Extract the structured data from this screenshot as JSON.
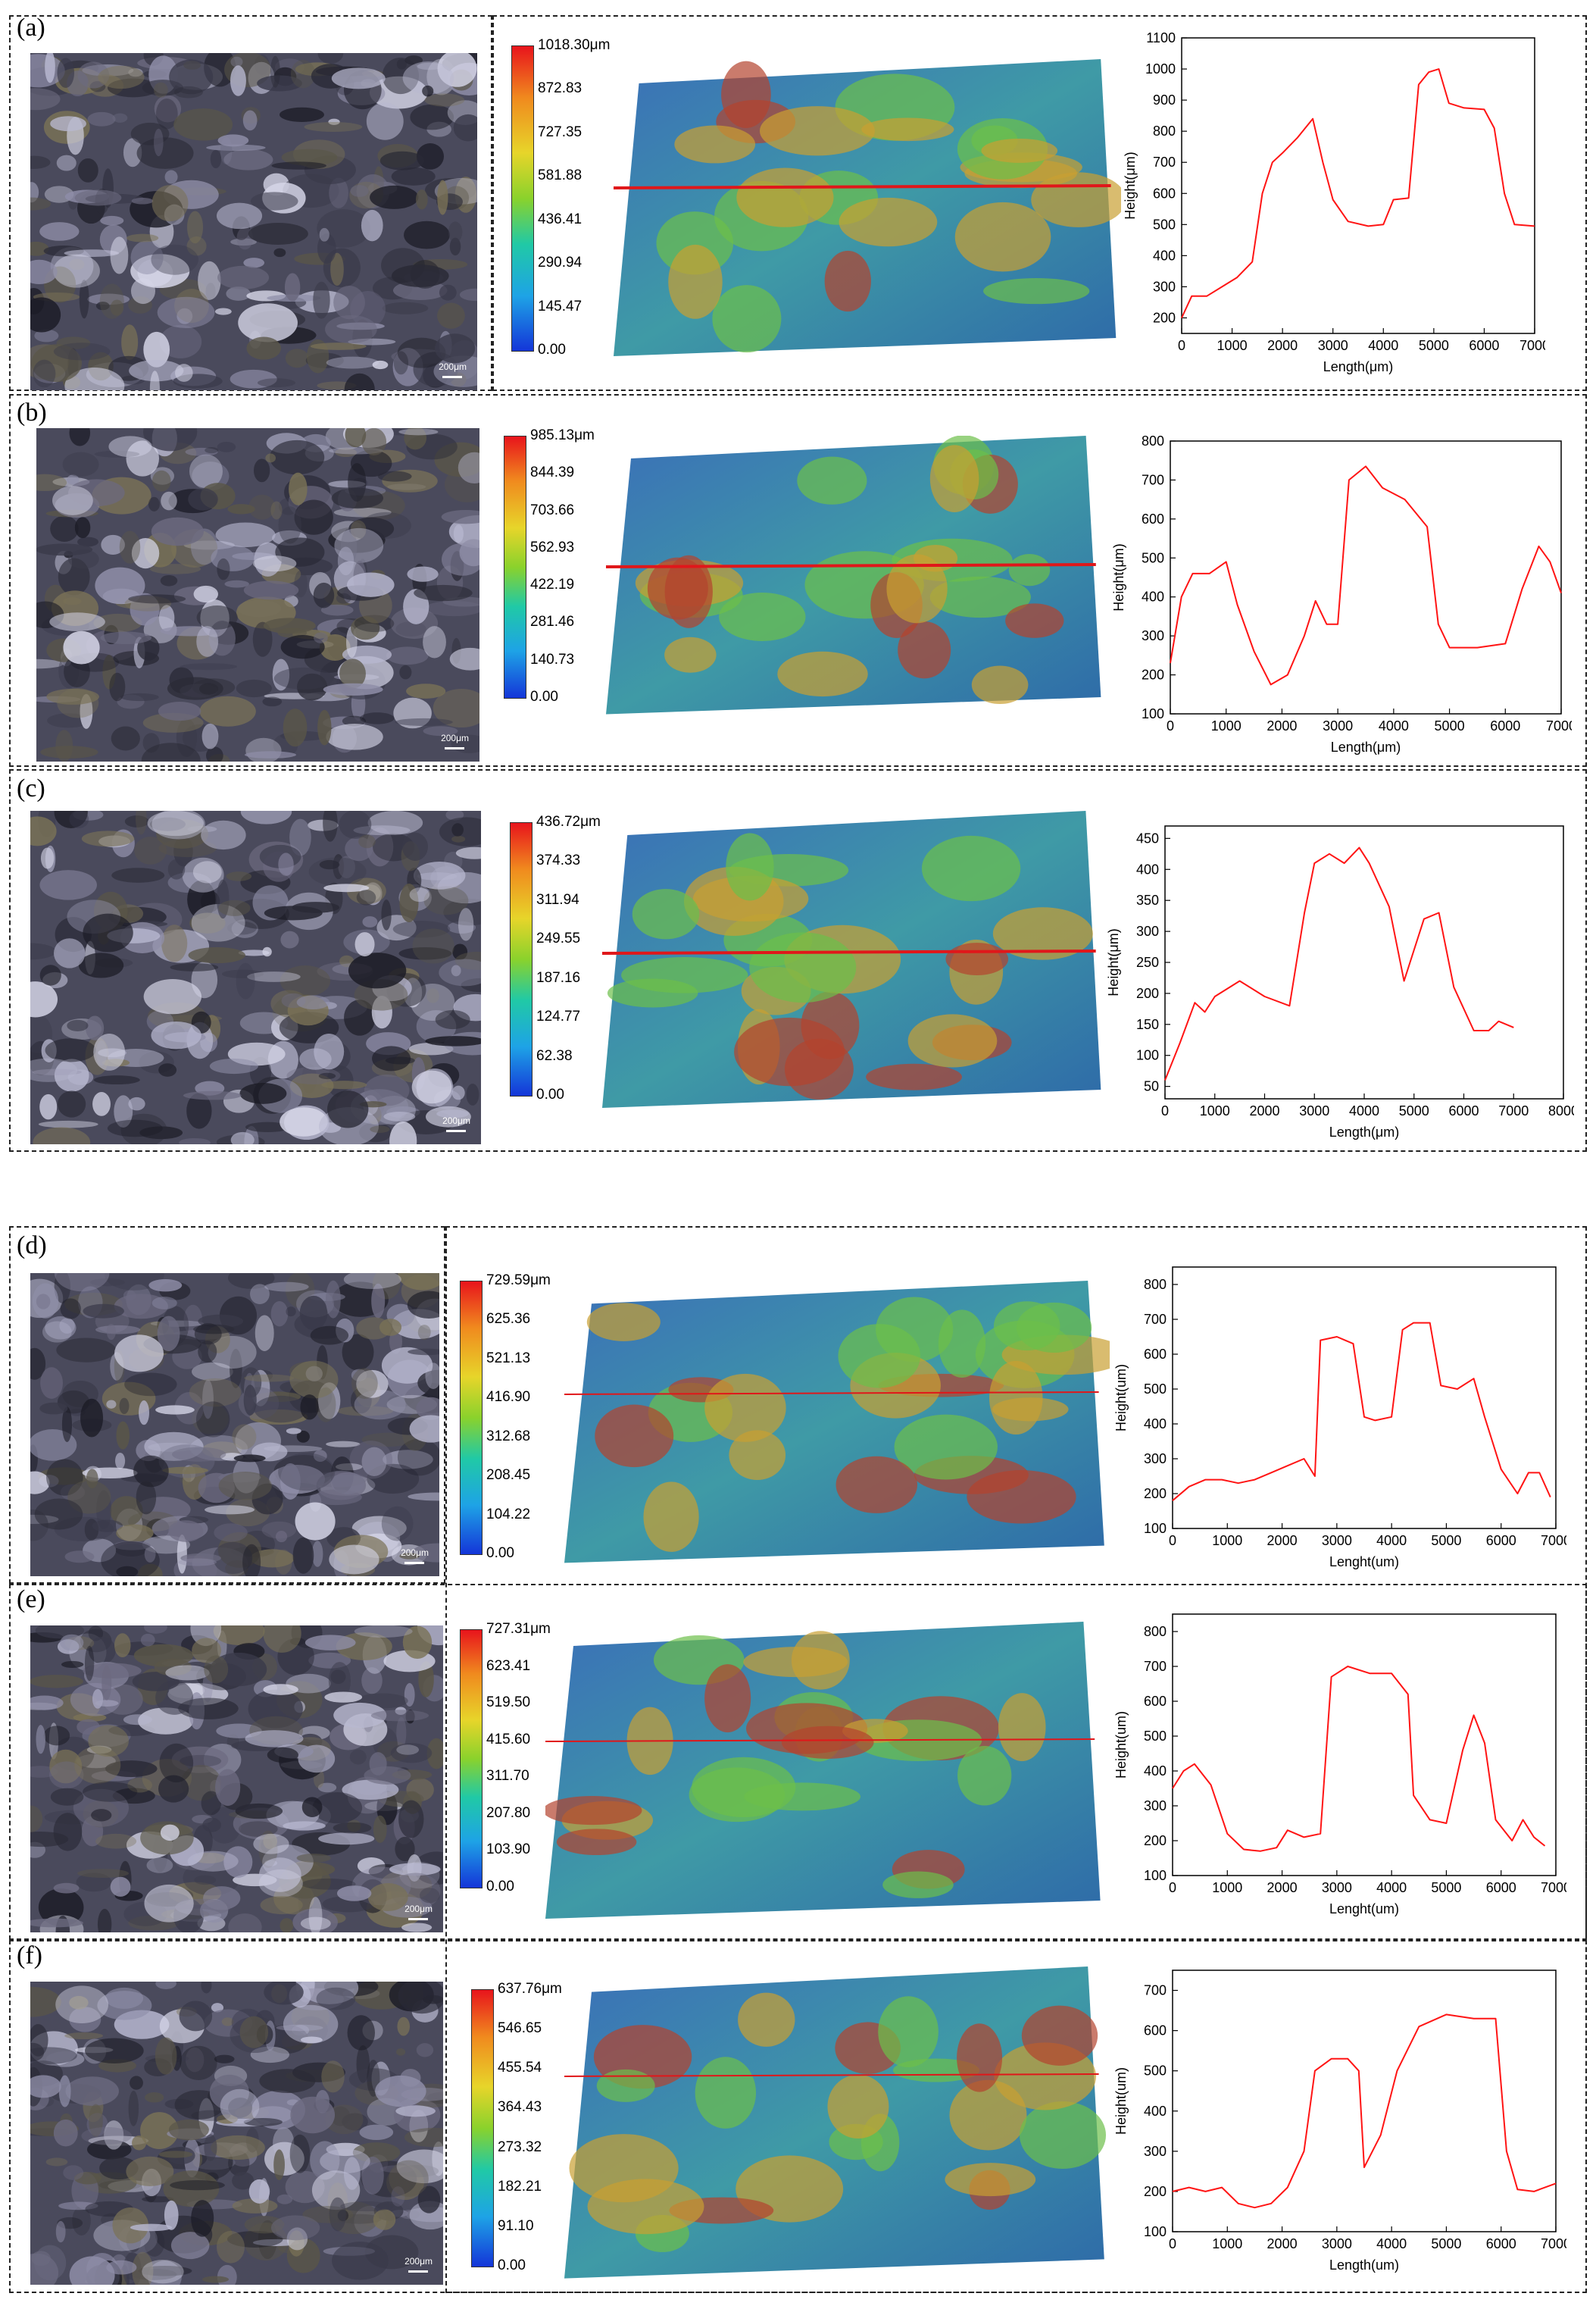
{
  "figure": {
    "panels": [
      {
        "letter": "(a)",
        "scale_label": "200μm",
        "colorbar_ticks": [
          "1018.30μm",
          "872.83",
          "727.35",
          "581.88",
          "436.41",
          "290.94",
          "145.47",
          "0.00"
        ],
        "chart_data": {
          "type": "line",
          "xlabel": "Length(μm)",
          "ylabel": "Height(μm)",
          "xlim": [
            0,
            7000
          ],
          "ylim": [
            150,
            1100
          ],
          "xticks": [
            0,
            1000,
            2000,
            3000,
            4000,
            5000,
            6000,
            7000
          ],
          "yticks": [
            200,
            300,
            400,
            500,
            600,
            700,
            800,
            900,
            1000,
            1100
          ],
          "series": [
            {
              "x": [
                0,
                200,
                500,
                800,
                1100,
                1400,
                1600,
                1800,
                2000,
                2300,
                2600,
                2800,
                3000,
                3300,
                3700,
                4000,
                4200,
                4500,
                4700,
                4900,
                5100,
                5300,
                5600,
                6000,
                6200,
                6400,
                6600,
                7000
              ],
              "y": [
                200,
                270,
                270,
                300,
                330,
                380,
                600,
                700,
                730,
                780,
                840,
                700,
                580,
                510,
                495,
                500,
                580,
                585,
                950,
                990,
                1000,
                890,
                875,
                870,
                810,
                600,
                500,
                495
              ]
            }
          ]
        }
      },
      {
        "letter": "(b)",
        "scale_label": "200μm",
        "colorbar_ticks": [
          "985.13μm",
          "844.39",
          "703.66",
          "562.93",
          "422.19",
          "281.46",
          "140.73",
          "0.00"
        ],
        "chart_data": {
          "type": "line",
          "xlabel": "Length(μm)",
          "ylabel": "Height(μm)",
          "xlim": [
            0,
            7000
          ],
          "ylim": [
            100,
            800
          ],
          "xticks": [
            0,
            1000,
            2000,
            3000,
            4000,
            5000,
            6000,
            7000
          ],
          "yticks": [
            100,
            200,
            300,
            400,
            500,
            600,
            700,
            800
          ],
          "series": [
            {
              "x": [
                0,
                200,
                400,
                700,
                1000,
                1200,
                1500,
                1800,
                2100,
                2400,
                2600,
                2800,
                3000,
                3200,
                3500,
                3800,
                4200,
                4600,
                4800,
                5000,
                5500,
                6000,
                6300,
                6600,
                6800,
                7000
              ],
              "y": [
                230,
                400,
                460,
                460,
                490,
                380,
                260,
                175,
                200,
                300,
                390,
                330,
                330,
                700,
                735,
                680,
                650,
                580,
                330,
                270,
                270,
                280,
                420,
                530,
                490,
                410
              ]
            }
          ]
        }
      },
      {
        "letter": "(c)",
        "scale_label": "200μm",
        "colorbar_ticks": [
          "436.72μm",
          "374.33",
          "311.94",
          "249.55",
          "187.16",
          "124.77",
          "62.38",
          "0.00"
        ],
        "chart_data": {
          "type": "line",
          "xlabel": "Length(μm)",
          "ylabel": "Height(μm)",
          "xlim": [
            0,
            8000
          ],
          "ylim": [
            30,
            470
          ],
          "xticks": [
            0,
            1000,
            2000,
            3000,
            4000,
            5000,
            6000,
            7000,
            8000
          ],
          "yticks": [
            50,
            100,
            150,
            200,
            250,
            300,
            350,
            400,
            450
          ],
          "series": [
            {
              "x": [
                0,
                300,
                600,
                800,
                1000,
                1500,
                2000,
                2500,
                2800,
                3000,
                3300,
                3600,
                3900,
                4100,
                4500,
                4800,
                5200,
                5500,
                5800,
                6200,
                6500,
                6700,
                7000
              ],
              "y": [
                60,
                120,
                185,
                170,
                195,
                220,
                195,
                180,
                330,
                410,
                425,
                410,
                435,
                410,
                340,
                220,
                320,
                330,
                210,
                140,
                140,
                155,
                145
              ]
            }
          ]
        }
      },
      {
        "letter": "(d)",
        "scale_label": "200μm",
        "colorbar_ticks": [
          "729.59μm",
          "625.36",
          "521.13",
          "416.90",
          "312.68",
          "208.45",
          "104.22",
          "0.00"
        ],
        "chart_data": {
          "type": "line",
          "xlabel": "Lenght(um)",
          "ylabel": "Height(um)",
          "xlim": [
            0,
            7000
          ],
          "ylim": [
            100,
            850
          ],
          "xticks": [
            0,
            1000,
            2000,
            3000,
            4000,
            5000,
            6000,
            7000
          ],
          "yticks": [
            100,
            200,
            300,
            400,
            500,
            600,
            700,
            800
          ],
          "series": [
            {
              "x": [
                0,
                300,
                600,
                900,
                1200,
                1500,
                1800,
                2100,
                2400,
                2600,
                2700,
                3000,
                3300,
                3500,
                3700,
                4000,
                4200,
                4400,
                4700,
                4900,
                5200,
                5500,
                5700,
                6000,
                6300,
                6500,
                6700,
                6900
              ],
              "y": [
                180,
                220,
                240,
                240,
                230,
                240,
                260,
                280,
                300,
                250,
                640,
                650,
                630,
                420,
                410,
                420,
                670,
                690,
                690,
                510,
                500,
                530,
                420,
                270,
                200,
                260,
                260,
                190
              ]
            }
          ]
        }
      },
      {
        "letter": "(e)",
        "scale_label": "200μm",
        "colorbar_ticks": [
          "727.31μm",
          "623.41",
          "519.50",
          "415.60",
          "311.70",
          "207.80",
          "103.90",
          "0.00"
        ],
        "chart_data": {
          "type": "line",
          "xlabel": "Lenght(um)",
          "ylabel": "Height(um)",
          "xlim": [
            0,
            7000
          ],
          "ylim": [
            100,
            850
          ],
          "xticks": [
            0,
            1000,
            2000,
            3000,
            4000,
            5000,
            6000,
            7000
          ],
          "yticks": [
            100,
            200,
            300,
            400,
            500,
            600,
            700,
            800
          ],
          "series": [
            {
              "x": [
                0,
                200,
                400,
                700,
                1000,
                1300,
                1600,
                1900,
                2100,
                2400,
                2700,
                2900,
                3200,
                3600,
                4000,
                4300,
                4400,
                4700,
                5000,
                5300,
                5500,
                5700,
                5900,
                6200,
                6400,
                6600,
                6800
              ],
              "y": [
                350,
                400,
                420,
                360,
                220,
                175,
                170,
                180,
                230,
                210,
                220,
                670,
                700,
                680,
                680,
                620,
                330,
                260,
                250,
                460,
                560,
                480,
                260,
                200,
                260,
                210,
                185
              ]
            }
          ]
        }
      },
      {
        "letter": "(f)",
        "scale_label": "200μm",
        "colorbar_ticks": [
          "637.76μm",
          "546.65",
          "455.54",
          "364.43",
          "273.32",
          "182.21",
          "91.10",
          "0.00"
        ],
        "chart_data": {
          "type": "line",
          "xlabel": "Length(um)",
          "ylabel": "Height(um)",
          "xlim": [
            0,
            7000
          ],
          "ylim": [
            100,
            750
          ],
          "xticks": [
            0,
            1000,
            2000,
            3000,
            4000,
            5000,
            6000,
            7000
          ],
          "yticks": [
            100,
            200,
            300,
            400,
            500,
            600,
            700
          ],
          "series": [
            {
              "x": [
                0,
                300,
                600,
                900,
                1200,
                1500,
                1800,
                2100,
                2400,
                2600,
                2900,
                3200,
                3400,
                3500,
                3800,
                4100,
                4500,
                5000,
                5500,
                5900,
                6100,
                6300,
                6600,
                7000
              ],
              "y": [
                200,
                210,
                200,
                210,
                170,
                160,
                170,
                210,
                300,
                500,
                530,
                530,
                500,
                260,
                340,
                500,
                610,
                640,
                630,
                630,
                300,
                205,
                200,
                220
              ]
            }
          ]
        }
      }
    ]
  }
}
